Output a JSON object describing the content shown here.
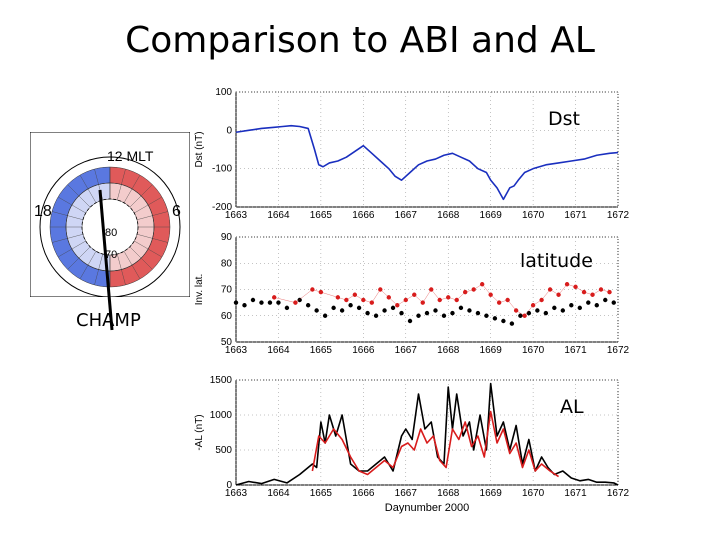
{
  "slide": {
    "title": "Comparison to ABI and AL",
    "champ_label": "CHAMP"
  },
  "dial": {
    "top_label": "12 MLT",
    "left_label": "18",
    "right_label": "6",
    "ring_label_inner": "80",
    "ring_label_outer": "70",
    "colors": {
      "blue": "#5a78e0",
      "red": "#e05a5a",
      "pale_blue": "#cfd6f5",
      "pale_red": "#f3cccc"
    }
  },
  "chart_data": [
    {
      "type": "line",
      "panel_label": "Dst",
      "ylabel": "Dst (nT)",
      "xlim": [
        1663,
        1672
      ],
      "ylim": [
        -200,
        100
      ],
      "yticks": [
        100,
        0,
        -100,
        -200
      ],
      "xticks": [
        1663,
        1664,
        1665,
        1666,
        1667,
        1668,
        1669,
        1670,
        1671,
        1672
      ],
      "series": [
        {
          "color": "#1a2fbf",
          "x": [
            1663.0,
            1663.3,
            1663.6,
            1663.9,
            1664.1,
            1664.3,
            1664.5,
            1664.7,
            1664.85,
            1664.95,
            1665.05,
            1665.2,
            1665.4,
            1665.6,
            1665.8,
            1666.0,
            1666.2,
            1666.4,
            1666.6,
            1666.75,
            1666.9,
            1667.1,
            1667.3,
            1667.5,
            1667.7,
            1667.9,
            1668.1,
            1668.3,
            1668.5,
            1668.7,
            1668.9,
            1669.0,
            1669.15,
            1669.3,
            1669.45,
            1669.55,
            1669.65,
            1669.8,
            1670.0,
            1670.3,
            1670.6,
            1670.9,
            1671.2,
            1671.5,
            1671.8,
            1672.0
          ],
          "y": [
            -5,
            0,
            5,
            8,
            10,
            12,
            10,
            5,
            -50,
            -90,
            -95,
            -85,
            -80,
            -70,
            -55,
            -40,
            -60,
            -80,
            -100,
            -120,
            -130,
            -110,
            -90,
            -80,
            -75,
            -65,
            -60,
            -70,
            -80,
            -100,
            -110,
            -130,
            -150,
            -180,
            -150,
            -145,
            -130,
            -110,
            -100,
            -90,
            -85,
            -80,
            -75,
            -65,
            -60,
            -58
          ]
        }
      ]
    },
    {
      "type": "scatter",
      "panel_label": "latitude",
      "ylabel": "Inv. lat.",
      "xlim": [
        1663,
        1672
      ],
      "ylim": [
        50,
        90
      ],
      "yticks": [
        90,
        80,
        70,
        60,
        50
      ],
      "xticks": [
        1663,
        1664,
        1665,
        1666,
        1667,
        1668,
        1669,
        1670,
        1671,
        1672
      ],
      "series": [
        {
          "color": "#000000",
          "x": [
            1663.0,
            1663.2,
            1663.4,
            1663.6,
            1663.8,
            1664.0,
            1664.2,
            1664.5,
            1664.7,
            1664.9,
            1665.1,
            1665.3,
            1665.5,
            1665.7,
            1665.9,
            1666.1,
            1666.3,
            1666.5,
            1666.7,
            1666.9,
            1667.1,
            1667.3,
            1667.5,
            1667.7,
            1667.9,
            1668.1,
            1668.3,
            1668.5,
            1668.7,
            1668.9,
            1669.1,
            1669.3,
            1669.5,
            1669.7,
            1669.9,
            1670.1,
            1670.3,
            1670.5,
            1670.7,
            1670.9,
            1671.1,
            1671.3,
            1671.5,
            1671.7,
            1671.9
          ],
          "y": [
            65,
            64,
            66,
            65,
            65,
            65,
            63,
            66,
            64,
            62,
            60,
            63,
            62,
            64,
            63,
            61,
            60,
            62,
            63,
            61,
            58,
            60,
            61,
            62,
            60,
            61,
            63,
            62,
            61,
            60,
            59,
            58,
            57,
            60,
            61,
            62,
            61,
            63,
            62,
            64,
            63,
            65,
            64,
            66,
            65
          ]
        },
        {
          "color": "#d81c1c",
          "x": [
            1663.9,
            1664.4,
            1664.8,
            1665.0,
            1665.4,
            1665.6,
            1665.8,
            1666.0,
            1666.2,
            1666.4,
            1666.6,
            1666.8,
            1667.0,
            1667.2,
            1667.4,
            1667.6,
            1667.8,
            1668.0,
            1668.2,
            1668.4,
            1668.6,
            1668.8,
            1669.0,
            1669.2,
            1669.4,
            1669.6,
            1669.8,
            1670.0,
            1670.2,
            1670.4,
            1670.6,
            1670.8,
            1671.0,
            1671.2,
            1671.4,
            1671.6,
            1671.8
          ],
          "y": [
            67,
            65,
            70,
            69,
            67,
            66,
            68,
            66,
            65,
            70,
            67,
            64,
            66,
            68,
            65,
            70,
            66,
            67,
            66,
            69,
            70,
            72,
            68,
            65,
            66,
            62,
            60,
            64,
            66,
            70,
            68,
            72,
            71,
            69,
            68,
            70,
            69
          ]
        }
      ]
    },
    {
      "type": "line",
      "panel_label": "AL",
      "ylabel": "-AL (nT)",
      "xlabel": "Daynumber 2000",
      "xlim": [
        1663,
        1672
      ],
      "ylim": [
        0,
        1500
      ],
      "yticks": [
        1500,
        1000,
        500,
        0
      ],
      "xticks": [
        1663,
        1664,
        1665,
        1666,
        1667,
        1668,
        1669,
        1670,
        1671,
        1672
      ],
      "series": [
        {
          "color": "#000000",
          "x": [
            1663.0,
            1663.3,
            1663.6,
            1663.9,
            1664.2,
            1664.5,
            1664.8,
            1664.9,
            1665.0,
            1665.1,
            1665.2,
            1665.35,
            1665.5,
            1665.7,
            1665.9,
            1666.1,
            1666.3,
            1666.5,
            1666.7,
            1666.9,
            1667.0,
            1667.15,
            1667.3,
            1667.45,
            1667.6,
            1667.75,
            1667.9,
            1668.0,
            1668.1,
            1668.2,
            1668.35,
            1668.5,
            1668.6,
            1668.75,
            1668.9,
            1669.0,
            1669.15,
            1669.3,
            1669.45,
            1669.6,
            1669.75,
            1669.9,
            1670.05,
            1670.2,
            1670.35,
            1670.5,
            1670.7,
            1670.9,
            1671.1,
            1671.3,
            1671.5,
            1671.7,
            1671.9,
            1672.0
          ],
          "y": [
            0,
            50,
            20,
            80,
            30,
            150,
            300,
            250,
            900,
            600,
            1000,
            700,
            1000,
            300,
            200,
            200,
            300,
            400,
            200,
            700,
            800,
            650,
            1300,
            800,
            900,
            400,
            300,
            1400,
            800,
            1300,
            700,
            900,
            500,
            1000,
            500,
            1450,
            700,
            900,
            500,
            850,
            300,
            650,
            200,
            400,
            250,
            150,
            200,
            100,
            60,
            80,
            40,
            40,
            30,
            0
          ]
        },
        {
          "color": "#d81c1c",
          "x": [
            1664.8,
            1664.95,
            1665.1,
            1665.3,
            1665.5,
            1665.7,
            1665.9,
            1666.1,
            1666.3,
            1666.5,
            1666.7,
            1666.9,
            1667.05,
            1667.2,
            1667.35,
            1667.5,
            1667.65,
            1667.8,
            1667.95,
            1668.1,
            1668.25,
            1668.4,
            1668.55,
            1668.7,
            1668.85,
            1669.0,
            1669.15,
            1669.3,
            1669.45,
            1669.6,
            1669.75,
            1669.9,
            1670.05,
            1670.2,
            1670.4,
            1670.6
          ],
          "y": [
            200,
            700,
            600,
            800,
            650,
            400,
            200,
            150,
            250,
            350,
            250,
            550,
            600,
            500,
            800,
            600,
            700,
            350,
            250,
            800,
            650,
            900,
            550,
            700,
            400,
            1050,
            600,
            800,
            450,
            600,
            250,
            500,
            200,
            300,
            200,
            120
          ]
        }
      ]
    }
  ]
}
